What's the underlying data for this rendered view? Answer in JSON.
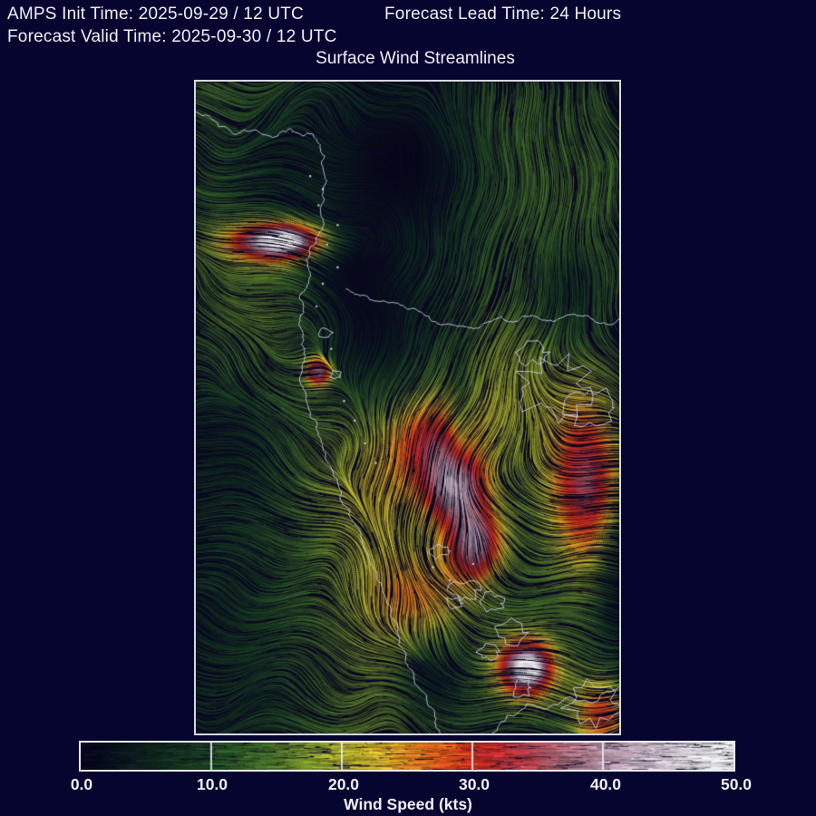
{
  "header": {
    "init_time": "AMPS Init Time: 2025-09-29 / 12 UTC",
    "lead_time": "Forecast Lead Time: 24 Hours",
    "valid_time": "Forecast Valid Time: 2025-09-30 / 12 UTC"
  },
  "title": "Surface Wind Streamlines",
  "colorbar": {
    "label": "Wind Speed (kts)",
    "ticks": [
      "0.0",
      "10.0",
      "20.0",
      "30.0",
      "40.0",
      "50.0"
    ],
    "min": 0,
    "max": 50
  },
  "chart_data": {
    "type": "streamlines",
    "title": "Surface Wind Streamlines",
    "variable": "surface wind",
    "units": "kts",
    "speed_range": [
      0,
      50
    ],
    "colorbar_ticks": [
      0,
      10,
      20,
      30,
      40,
      50
    ],
    "colormap": [
      [
        0,
        "#06061a"
      ],
      [
        3,
        "#0a141c"
      ],
      [
        6,
        "#102a1e"
      ],
      [
        10,
        "#1e4622"
      ],
      [
        14,
        "#3c6726"
      ],
      [
        18,
        "#7e962a"
      ],
      [
        21,
        "#c4bc2f"
      ],
      [
        24,
        "#dfa024"
      ],
      [
        27,
        "#df641b"
      ],
      [
        30,
        "#d32c18"
      ],
      [
        33,
        "#b62f38"
      ],
      [
        36,
        "#ab5f6b"
      ],
      [
        40,
        "#b193a4"
      ],
      [
        44,
        "#c6b8c6"
      ],
      [
        50,
        "#ffffff"
      ]
    ],
    "base_speed": 13,
    "speed_bumps": [
      {
        "x": 0.2,
        "y": 0.245,
        "sx": 0.085,
        "sy": 0.022,
        "amp": 34
      },
      {
        "x": 0.205,
        "y": 0.243,
        "sx": 0.032,
        "sy": 0.009,
        "amp": 13
      },
      {
        "x": 0.29,
        "y": 0.445,
        "sx": 0.022,
        "sy": 0.016,
        "amp": 26
      },
      {
        "x": 0.56,
        "y": 0.55,
        "sx": 0.07,
        "sy": 0.05,
        "amp": 15
      },
      {
        "x": 0.615,
        "y": 0.625,
        "sx": 0.05,
        "sy": 0.04,
        "amp": 23
      },
      {
        "x": 0.66,
        "y": 0.71,
        "sx": 0.045,
        "sy": 0.04,
        "amp": 24
      },
      {
        "x": 0.925,
        "y": 0.62,
        "sx": 0.06,
        "sy": 0.09,
        "amp": 21
      },
      {
        "x": 0.78,
        "y": 0.9,
        "sx": 0.05,
        "sy": 0.034,
        "amp": 31
      },
      {
        "x": 0.785,
        "y": 0.9,
        "sx": 0.02,
        "sy": 0.012,
        "amp": 14
      },
      {
        "x": 0.96,
        "y": 0.97,
        "sx": 0.05,
        "sy": 0.04,
        "amp": 17
      },
      {
        "x": 0.7,
        "y": 0.48,
        "sx": 0.13,
        "sy": 0.1,
        "amp": 6
      },
      {
        "x": 0.44,
        "y": 0.62,
        "sx": 0.1,
        "sy": 0.08,
        "amp": 7
      },
      {
        "x": 0.52,
        "y": 0.79,
        "sx": 0.09,
        "sy": 0.05,
        "amp": 10
      },
      {
        "x": 0.17,
        "y": 0.13,
        "sx": 0.13,
        "sy": 0.09,
        "amp": -9
      },
      {
        "x": 0.49,
        "y": 0.12,
        "sx": 0.1,
        "sy": 0.07,
        "amp": -8
      },
      {
        "x": 0.41,
        "y": 0.38,
        "sx": 0.09,
        "sy": 0.07,
        "amp": -8
      },
      {
        "x": 0.35,
        "y": 0.27,
        "sx": 0.07,
        "sy": 0.05,
        "amp": -7
      },
      {
        "x": 0.56,
        "y": 0.92,
        "sx": 0.05,
        "sy": 0.04,
        "amp": -9
      },
      {
        "x": 0.88,
        "y": 0.33,
        "sx": 0.07,
        "sy": 0.06,
        "amp": -7
      },
      {
        "x": 0.1,
        "y": 0.55,
        "sx": 0.08,
        "sy": 0.07,
        "amp": -5
      },
      {
        "x": 0.995,
        "y": 0.78,
        "sx": 0.035,
        "sy": 0.09,
        "amp": -6
      },
      {
        "x": 0.625,
        "y": 0.52,
        "sx": 0.022,
        "sy": 0.07,
        "amp": -6
      }
    ],
    "flows": [
      {
        "kind": "smoothy",
        "y0": 0.5,
        "y1": 0.68,
        "u": 1.05,
        "v": 0.1
      },
      {
        "kind": "smoothy_inv",
        "y0": 0.12,
        "y1": 0.3,
        "u": 0.75,
        "v": -0.08
      },
      {
        "kind": "gauss",
        "x": 0.78,
        "y": 0.2,
        "sx": 0.2,
        "sy": 0.15,
        "u": -0.9,
        "v": 3.0
      },
      {
        "kind": "jetline",
        "x0": 0.5,
        "slope": 0.3,
        "yc": 0.75,
        "y": 0.56,
        "sx": 0.12,
        "sy": 0.2,
        "u": -1.5,
        "v": 2.8
      },
      {
        "kind": "gauss",
        "x": 0.1,
        "y": 0.42,
        "sx": 0.2,
        "sy": 0.22,
        "u": 0.9,
        "v": 0.45
      },
      {
        "kind": "gauss",
        "x": 0.95,
        "y": 0.55,
        "sx": 0.1,
        "sy": 0.22,
        "u": 1.3,
        "v": 0.15
      },
      {
        "kind": "gauss",
        "x": 0.2,
        "y": 0.245,
        "sx": 0.1,
        "sy": 0.03,
        "u": 2.6,
        "v": 0.1
      },
      {
        "kind": "gauss",
        "x": 0.78,
        "y": 0.9,
        "sx": 0.07,
        "sy": 0.05,
        "u": 2.4,
        "v": 0.3
      },
      {
        "kind": "vortex",
        "x": 0.17,
        "y": 0.16,
        "s": -2.3,
        "r": 0.15
      },
      {
        "kind": "vortex",
        "x": 0.5,
        "y": 0.14,
        "s": 1.6,
        "r": 0.09
      },
      {
        "kind": "vortex",
        "x": 0.545,
        "y": 0.905,
        "s": -2.0,
        "r": 0.075
      },
      {
        "kind": "vortex",
        "x": 0.06,
        "y": 0.66,
        "s": 1.2,
        "r": 0.13
      },
      {
        "kind": "vortex",
        "x": 0.87,
        "y": 0.16,
        "s": 1.0,
        "r": 0.12
      }
    ],
    "coastlines": [
      [
        [
          0,
          0.046
        ],
        [
          0.053,
          0.069
        ],
        [
          0.096,
          0.081
        ],
        [
          0.138,
          0.074
        ],
        [
          0.181,
          0.086
        ],
        [
          0.223,
          0.072
        ],
        [
          0.251,
          0.083
        ],
        [
          0.277,
          0.081
        ],
        [
          0.294,
          0.097
        ],
        [
          0.304,
          0.114
        ],
        [
          0.3,
          0.132
        ],
        [
          0.309,
          0.153
        ],
        [
          0.298,
          0.174
        ],
        [
          0.294,
          0.194
        ],
        [
          0.302,
          0.215
        ],
        [
          0.289,
          0.236
        ],
        [
          0.272,
          0.253
        ],
        [
          0.262,
          0.272
        ],
        [
          0.27,
          0.292
        ],
        [
          0.262,
          0.313
        ],
        [
          0.245,
          0.333
        ],
        [
          0.255,
          0.354
        ],
        [
          0.245,
          0.375
        ],
        [
          0.249,
          0.403
        ],
        [
          0.255,
          0.431
        ],
        [
          0.245,
          0.458
        ],
        [
          0.26,
          0.486
        ],
        [
          0.27,
          0.514
        ],
        [
          0.289,
          0.542
        ],
        [
          0.306,
          0.569
        ],
        [
          0.323,
          0.597
        ],
        [
          0.34,
          0.625
        ],
        [
          0.357,
          0.653
        ],
        [
          0.377,
          0.681
        ],
        [
          0.394,
          0.708
        ],
        [
          0.411,
          0.736
        ],
        [
          0.428,
          0.764
        ],
        [
          0.447,
          0.792
        ],
        [
          0.46,
          0.82
        ],
        [
          0.477,
          0.847
        ],
        [
          0.494,
          0.875
        ],
        [
          0.511,
          0.903
        ],
        [
          0.528,
          0.931
        ],
        [
          0.549,
          0.958
        ],
        [
          0.566,
          0.986
        ],
        [
          0.577,
          1.0
        ]
      ],
      [
        [
          0.355,
          0.318
        ],
        [
          0.4,
          0.328
        ],
        [
          0.45,
          0.338
        ],
        [
          0.5,
          0.349
        ],
        [
          0.55,
          0.36
        ],
        [
          0.6,
          0.372
        ],
        [
          0.645,
          0.378
        ],
        [
          0.685,
          0.37
        ],
        [
          0.72,
          0.36
        ],
        [
          0.76,
          0.368
        ],
        [
          0.8,
          0.36
        ],
        [
          0.85,
          0.367
        ],
        [
          0.9,
          0.359
        ],
        [
          0.95,
          0.37
        ],
        [
          1.0,
          0.364
        ]
      ],
      [
        [
          0.7,
          1.0
        ],
        [
          0.735,
          0.972
        ],
        [
          0.78,
          0.955
        ],
        [
          0.83,
          0.962
        ],
        [
          0.875,
          0.945
        ],
        [
          0.93,
          0.952
        ],
        [
          0.97,
          0.935
        ],
        [
          1.0,
          0.928
        ]
      ]
    ],
    "islands": [
      {
        "x": 0.845,
        "y": 0.47,
        "r": 0.086
      },
      {
        "x": 0.93,
        "y": 0.5,
        "r": 0.056
      },
      {
        "x": 0.795,
        "y": 0.415,
        "r": 0.034
      },
      {
        "x": 0.635,
        "y": 0.78,
        "r": 0.034
      },
      {
        "x": 0.7,
        "y": 0.8,
        "r": 0.028
      },
      {
        "x": 0.745,
        "y": 0.845,
        "r": 0.036
      },
      {
        "x": 0.69,
        "y": 0.875,
        "r": 0.024
      },
      {
        "x": 0.61,
        "y": 0.8,
        "r": 0.019
      },
      {
        "x": 0.94,
        "y": 0.955,
        "r": 0.064
      },
      {
        "x": 0.305,
        "y": 0.385,
        "r": 0.017
      },
      {
        "x": 0.33,
        "y": 0.45,
        "r": 0.013
      },
      {
        "x": 0.575,
        "y": 0.72,
        "r": 0.021
      },
      {
        "x": 0.77,
        "y": 0.93,
        "r": 0.026
      }
    ],
    "island_dots": [
      [
        0.31,
        0.25
      ],
      [
        0.335,
        0.285
      ],
      [
        0.3,
        0.31
      ],
      [
        0.285,
        0.345
      ],
      [
        0.32,
        0.41
      ],
      [
        0.35,
        0.49
      ],
      [
        0.375,
        0.52
      ],
      [
        0.4,
        0.555
      ],
      [
        0.425,
        0.585
      ],
      [
        0.335,
        0.22
      ],
      [
        0.29,
        0.19
      ],
      [
        0.56,
        0.745
      ],
      [
        0.6,
        0.765
      ],
      [
        0.655,
        0.74
      ],
      [
        0.3,
        0.165
      ],
      [
        0.27,
        0.145
      ]
    ]
  }
}
